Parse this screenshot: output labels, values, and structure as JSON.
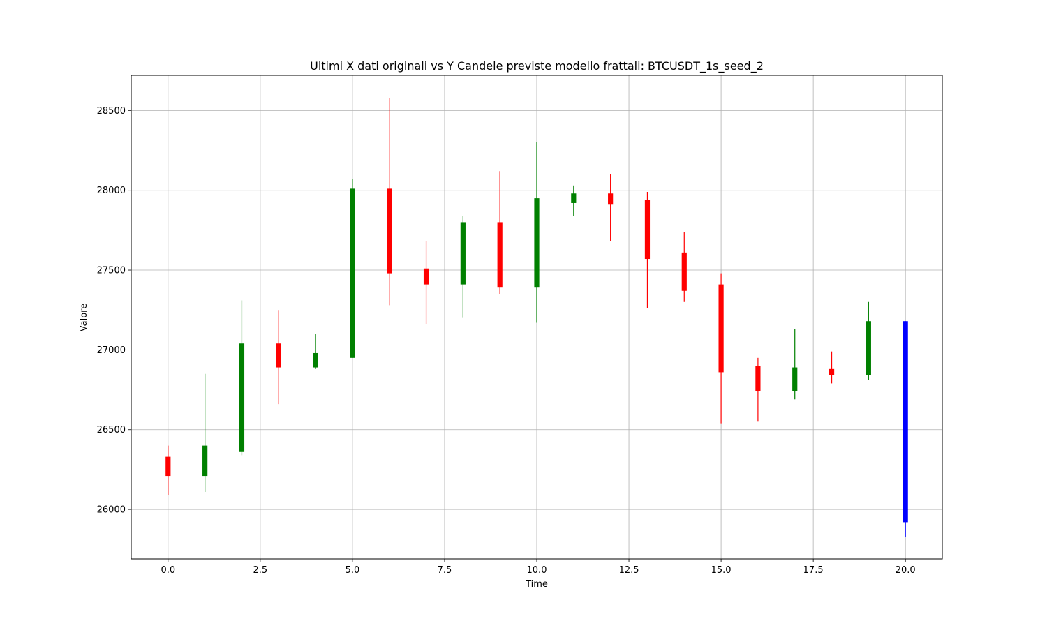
{
  "chart_data": {
    "type": "candlestick",
    "title": "Ultimi X dati originali vs Y Candele previste modello frattali: BTCUSDT_1s_seed_2",
    "xlabel": "Time",
    "ylabel": "Valore",
    "xlim": [
      -1,
      21
    ],
    "ylim": [
      25690,
      28720
    ],
    "grid": true,
    "xticks": [
      0.0,
      2.5,
      5.0,
      7.5,
      10.0,
      12.5,
      15.0,
      17.5,
      20.0
    ],
    "xtick_labels": [
      "0.0",
      "2.5",
      "5.0",
      "7.5",
      "10.0",
      "12.5",
      "15.0",
      "17.5",
      "20.0"
    ],
    "yticks": [
      26000,
      26500,
      27000,
      27500,
      28000,
      28500
    ],
    "ytick_labels": [
      "26000",
      "26500",
      "27000",
      "27500",
      "28000",
      "28500"
    ],
    "colors": {
      "up": "#008000",
      "down": "#ff0000",
      "predicted": "#0000ff"
    },
    "candles": [
      {
        "x": 0,
        "open": 26330,
        "high": 26400,
        "low": 26090,
        "close": 26210,
        "color": "down"
      },
      {
        "x": 1,
        "open": 26210,
        "high": 26850,
        "low": 26110,
        "close": 26400,
        "color": "up"
      },
      {
        "x": 2,
        "open": 26360,
        "high": 27310,
        "low": 26340,
        "close": 27040,
        "color": "up"
      },
      {
        "x": 3,
        "open": 27040,
        "high": 27250,
        "low": 26660,
        "close": 26890,
        "color": "down"
      },
      {
        "x": 4,
        "open": 26890,
        "high": 27100,
        "low": 26880,
        "close": 26980,
        "color": "up"
      },
      {
        "x": 5,
        "open": 26950,
        "high": 28070,
        "low": 26950,
        "close": 28010,
        "color": "up"
      },
      {
        "x": 6,
        "open": 28010,
        "high": 28580,
        "low": 27280,
        "close": 27480,
        "color": "down"
      },
      {
        "x": 7,
        "open": 27510,
        "high": 27680,
        "low": 27160,
        "close": 27410,
        "color": "down"
      },
      {
        "x": 8,
        "open": 27410,
        "high": 27840,
        "low": 27200,
        "close": 27800,
        "color": "up"
      },
      {
        "x": 9,
        "open": 27800,
        "high": 28120,
        "low": 27350,
        "close": 27390,
        "color": "down"
      },
      {
        "x": 10,
        "open": 27390,
        "high": 28300,
        "low": 27170,
        "close": 27950,
        "color": "up"
      },
      {
        "x": 11,
        "open": 27920,
        "high": 28030,
        "low": 27840,
        "close": 27980,
        "color": "up"
      },
      {
        "x": 12,
        "open": 27980,
        "high": 28100,
        "low": 27680,
        "close": 27910,
        "color": "down"
      },
      {
        "x": 13,
        "open": 27940,
        "high": 27990,
        "low": 27260,
        "close": 27570,
        "color": "down"
      },
      {
        "x": 14,
        "open": 27610,
        "high": 27740,
        "low": 27300,
        "close": 27370,
        "color": "down"
      },
      {
        "x": 15,
        "open": 27410,
        "high": 27480,
        "low": 26540,
        "close": 26860,
        "color": "down"
      },
      {
        "x": 16,
        "open": 26900,
        "high": 26950,
        "low": 26550,
        "close": 26740,
        "color": "down"
      },
      {
        "x": 17,
        "open": 26740,
        "high": 27130,
        "low": 26690,
        "close": 26890,
        "color": "up"
      },
      {
        "x": 18,
        "open": 26880,
        "high": 26990,
        "low": 26790,
        "close": 26840,
        "color": "down"
      },
      {
        "x": 19,
        "open": 26840,
        "high": 27300,
        "low": 26810,
        "close": 27180,
        "color": "up"
      },
      {
        "x": 20,
        "open": 27180,
        "high": 27180,
        "low": 25830,
        "close": 25920,
        "color": "predicted"
      }
    ]
  }
}
